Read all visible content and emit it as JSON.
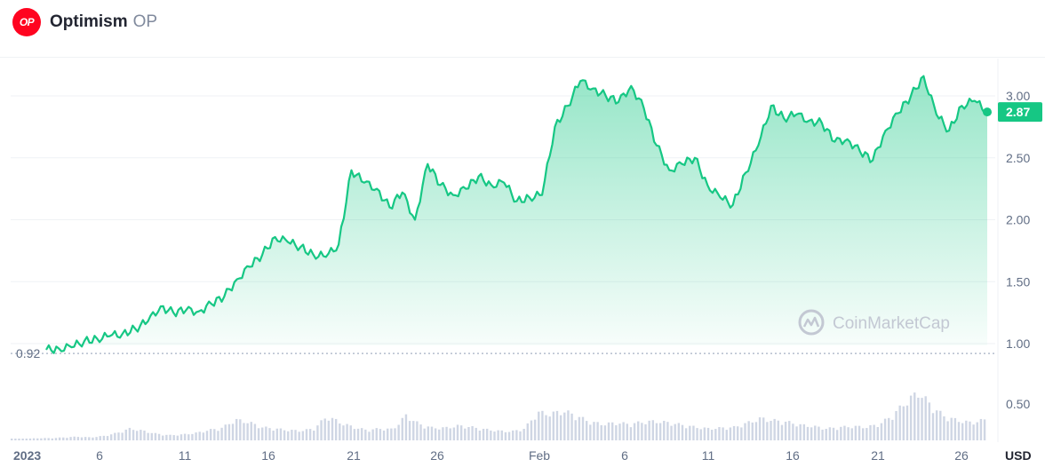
{
  "header": {
    "logo_text": "OP",
    "name": "Optimism",
    "symbol": "OP"
  },
  "watermark": "CoinMarketCap",
  "currency": "USD",
  "colors": {
    "line": "#16c784",
    "volume": "#cfd6e4",
    "brand": "#ff0420",
    "axis_text": "#616e85"
  },
  "chart_data": {
    "type": "area",
    "series": [
      {
        "values": [
          0.95,
          0.96,
          0.97,
          1.02,
          1.04,
          1.06,
          1.08,
          1.12,
          1.18,
          1.3,
          1.25,
          1.27,
          1.26,
          1.32,
          1.38,
          1.52,
          1.62,
          1.72,
          1.86,
          1.82,
          1.78,
          1.72,
          1.7,
          1.8,
          2.4,
          2.3,
          2.25,
          2.1,
          2.22,
          2.0,
          2.45,
          2.28,
          2.2,
          2.25,
          2.35,
          2.28,
          2.3,
          2.15,
          2.18,
          2.2,
          2.75,
          2.92,
          3.12,
          3.06,
          3.0,
          2.95,
          3.08,
          2.9,
          2.6,
          2.4,
          2.45,
          2.5,
          2.28,
          2.18,
          2.12,
          2.38,
          2.6,
          2.92,
          2.82,
          2.85,
          2.8,
          2.78,
          2.63,
          2.65,
          2.55,
          2.48,
          2.72,
          2.86,
          3.0,
          3.16,
          2.85,
          2.72,
          2.92,
          2.96,
          2.87
        ]
      },
      {
        "name": "Volume",
        "values": [
          0.02,
          0.02,
          0.03,
          0.03,
          0.04,
          0.05,
          0.04,
          0.06,
          0.1,
          0.16,
          0.13,
          0.09,
          0.07,
          0.08,
          0.1,
          0.14,
          0.17,
          0.28,
          0.25,
          0.18,
          0.16,
          0.14,
          0.13,
          0.16,
          0.33,
          0.24,
          0.18,
          0.14,
          0.16,
          0.15,
          0.34,
          0.22,
          0.17,
          0.17,
          0.2,
          0.18,
          0.15,
          0.13,
          0.12,
          0.16,
          0.38,
          0.36,
          0.4,
          0.33,
          0.25,
          0.22,
          0.24,
          0.22,
          0.25,
          0.26,
          0.24,
          0.21,
          0.18,
          0.16,
          0.17,
          0.18,
          0.24,
          0.3,
          0.27,
          0.25,
          0.21,
          0.19,
          0.16,
          0.18,
          0.19,
          0.18,
          0.22,
          0.34,
          0.52,
          0.66,
          0.46,
          0.32,
          0.27,
          0.24,
          0.28
        ]
      }
    ],
    "price_axis": {
      "ticks": [
        "3.00",
        "2.50",
        "2.00",
        "1.50",
        "1.00"
      ],
      "range": [
        0.85,
        3.3
      ]
    },
    "volume_axis": {
      "ticks": [
        "0.50"
      ]
    },
    "x_ticks": [
      "2023",
      "6",
      "11",
      "16",
      "21",
      "26",
      "Feb",
      "6",
      "11",
      "16",
      "21",
      "26"
    ],
    "min_label": "0.92",
    "current_value": "2.87"
  }
}
